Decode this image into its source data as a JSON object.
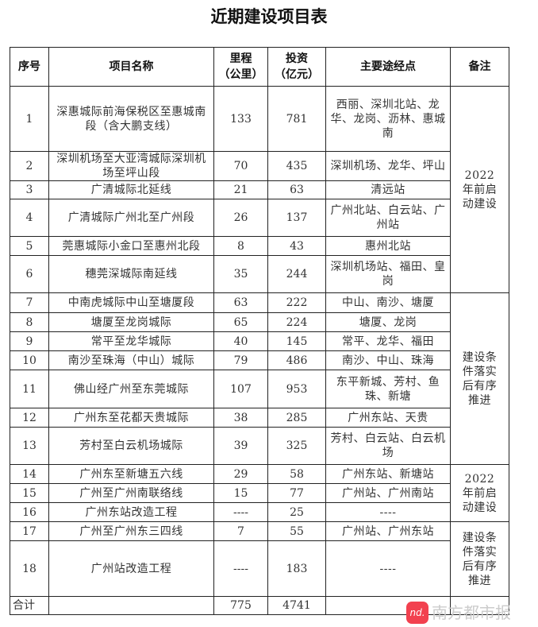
{
  "title": "近期建设项目表",
  "headers": [
    "序号",
    "项目名称",
    "里程\n（公里）",
    "投资\n（亿元）",
    "主要途经点",
    "备注"
  ],
  "rows": [
    {
      "no": "1",
      "name": "深惠城际前海保税区至惠城南段（含大鹏支线）",
      "km": "133",
      "inv": "781",
      "via": "西丽、深圳北站、龙华、龙岗、沥林、惠城南"
    },
    {
      "no": "2",
      "name": "深圳机场至大亚湾城际深圳机场至坪山段",
      "km": "70",
      "inv": "435",
      "via": "深圳机场、龙华、坪山"
    },
    {
      "no": "3",
      "name": "广清城际北延线",
      "km": "21",
      "inv": "63",
      "via": "清远站"
    },
    {
      "no": "4",
      "name": "广清城际广州北至广州段",
      "km": "26",
      "inv": "137",
      "via": "广州北站、白云站、广州站"
    },
    {
      "no": "5",
      "name": "莞惠城际小金口至惠州北段",
      "km": "8",
      "inv": "43",
      "via": "惠州北站"
    },
    {
      "no": "6",
      "name": "穗莞深城际南延线",
      "km": "35",
      "inv": "244",
      "via": "深圳机场站、福田、皇岗"
    },
    {
      "no": "7",
      "name": "中南虎城际中山至塘厦段",
      "km": "63",
      "inv": "222",
      "via": "中山、南沙、塘厦"
    },
    {
      "no": "8",
      "name": "塘厦至龙岗城际",
      "km": "65",
      "inv": "224",
      "via": "塘厦、龙岗"
    },
    {
      "no": "9",
      "name": "常平至龙华城际",
      "km": "40",
      "inv": "145",
      "via": "常平、龙华、福田"
    },
    {
      "no": "10",
      "name": "南沙至珠海（中山）城际",
      "km": "79",
      "inv": "486",
      "via": "南沙、中山、珠海"
    },
    {
      "no": "11",
      "name": "佛山经广州至东莞城际",
      "km": "107",
      "inv": "953",
      "via": "东平新城、芳村、鱼珠、新塘"
    },
    {
      "no": "12",
      "name": "广州东至花都天贵城际",
      "km": "38",
      "inv": "285",
      "via": "广州东站、天贵"
    },
    {
      "no": "13",
      "name": "芳村至白云机场城际",
      "km": "39",
      "inv": "325",
      "via": "芳村、白云站、白云机场"
    },
    {
      "no": "14",
      "name": "广州东至新塘五六线",
      "km": "29",
      "inv": "58",
      "via": "广州东站、新塘站"
    },
    {
      "no": "15",
      "name": "广州至广州南联络线",
      "km": "15",
      "inv": "77",
      "via": "广州站、广州南站"
    },
    {
      "no": "16",
      "name": "广州东站改造工程",
      "km": "----",
      "inv": "25",
      "via": "----"
    },
    {
      "no": "17",
      "name": "广州至广州东三四线",
      "km": "7",
      "inv": "55",
      "via": "广州站、广州东站"
    },
    {
      "no": "18",
      "name": "广州站改造工程",
      "km": "----",
      "inv": "183",
      "via": "----"
    }
  ],
  "remarks": [
    "2022 年前启动建设",
    "建设条件落实后有序推进",
    "2022 年前启动建设",
    "建设条件落实后有序推进"
  ],
  "total": {
    "label": "合计",
    "km": "775",
    "inv": "4741"
  },
  "watermark": {
    "logo": "nd.",
    "text": "南方都市报",
    "color": "#f2414f"
  }
}
